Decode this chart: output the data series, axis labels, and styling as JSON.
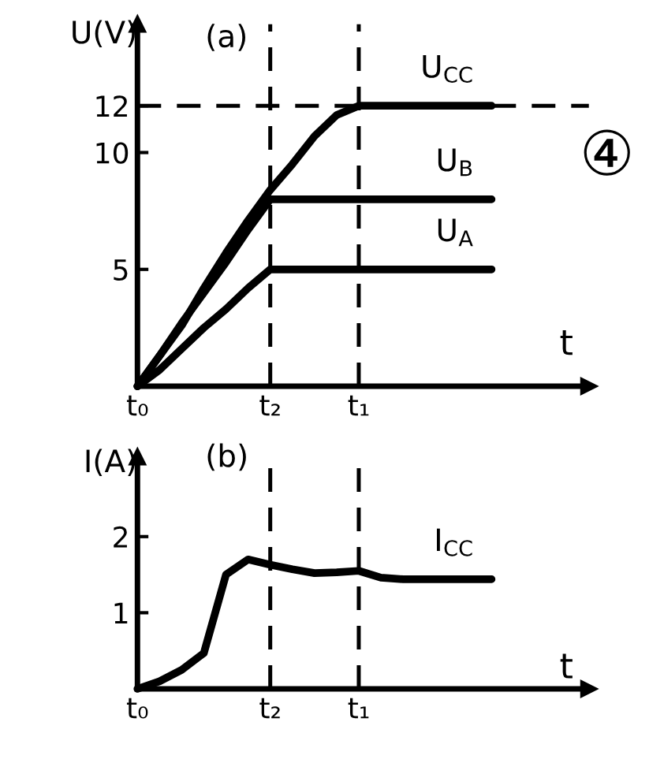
{
  "chart_data": [
    {
      "type": "line",
      "title": "(a)",
      "xlabel": "t",
      "ylabel": "U(V)",
      "categories": [
        "t₀",
        null,
        null,
        null,
        null,
        null,
        "t₂",
        null,
        null,
        null,
        "t₁",
        null,
        null,
        null,
        null,
        null,
        null,
        null,
        null,
        null,
        null
      ],
      "series": [
        {
          "name": "U$_{CC}$",
          "color": "#000000",
          "values": [
            0,
            1.3,
            2.6,
            4.2,
            5.7,
            7.1,
            8.4,
            9.5,
            10.7,
            11.6,
            12,
            12,
            12,
            12,
            12,
            12,
            12,
            null,
            null,
            null,
            null
          ]
        },
        {
          "name": "U$_{B}$",
          "color": "#000000",
          "values": [
            0,
            1.3,
            2.7,
            4.0,
            5.3,
            6.7,
            8,
            8,
            8,
            8,
            8,
            8,
            8,
            8,
            8,
            8,
            8,
            null,
            null,
            null,
            null
          ]
        },
        {
          "name": "U$_{A}$",
          "color": "#000000",
          "values": [
            0,
            0.7,
            1.6,
            2.5,
            3.3,
            4.2,
            5,
            5,
            5,
            5,
            5,
            5,
            5,
            5,
            5,
            5,
            5,
            null,
            null,
            null,
            null
          ]
        }
      ],
      "ylim": [
        0,
        15.5
      ],
      "yticks": [
        5,
        10,
        12
      ],
      "ref_lines": [
        {
          "axis": "x",
          "value": "t₂",
          "line_style": "dashed"
        },
        {
          "axis": "x",
          "value": "t₁",
          "line_style": "dashed"
        },
        {
          "axis": "y",
          "value": 12,
          "line_style": "dashed"
        }
      ],
      "annotations": [
        "④"
      ],
      "grid": false,
      "legend": false,
      "marker": "none",
      "line_style": "solid"
    },
    {
      "type": "line",
      "title": "(b)",
      "xlabel": "t",
      "ylabel": "I(A)",
      "categories": [
        "t₀",
        null,
        null,
        null,
        null,
        null,
        "t₂",
        null,
        null,
        null,
        "t₁",
        null,
        null,
        null,
        null,
        null,
        null,
        null,
        null,
        null,
        null
      ],
      "series": [
        {
          "name": "I$_{CC}$",
          "color": "#000000",
          "values": [
            0,
            0.1,
            0.25,
            0.47,
            1.5,
            1.7,
            1.63,
            1.57,
            1.52,
            1.53,
            1.55,
            1.46,
            1.44,
            1.44,
            1.44,
            1.44,
            1.44,
            null,
            null,
            null,
            null
          ]
        }
      ],
      "ylim": [
        0,
        3.05
      ],
      "yticks": [
        1,
        2
      ],
      "ref_lines": [
        {
          "axis": "x",
          "value": "t₂",
          "line_style": "dashed"
        },
        {
          "axis": "x",
          "value": "t₁",
          "line_style": "dashed"
        }
      ],
      "grid": false,
      "legend": false,
      "marker": "none",
      "line_style": "solid"
    }
  ]
}
